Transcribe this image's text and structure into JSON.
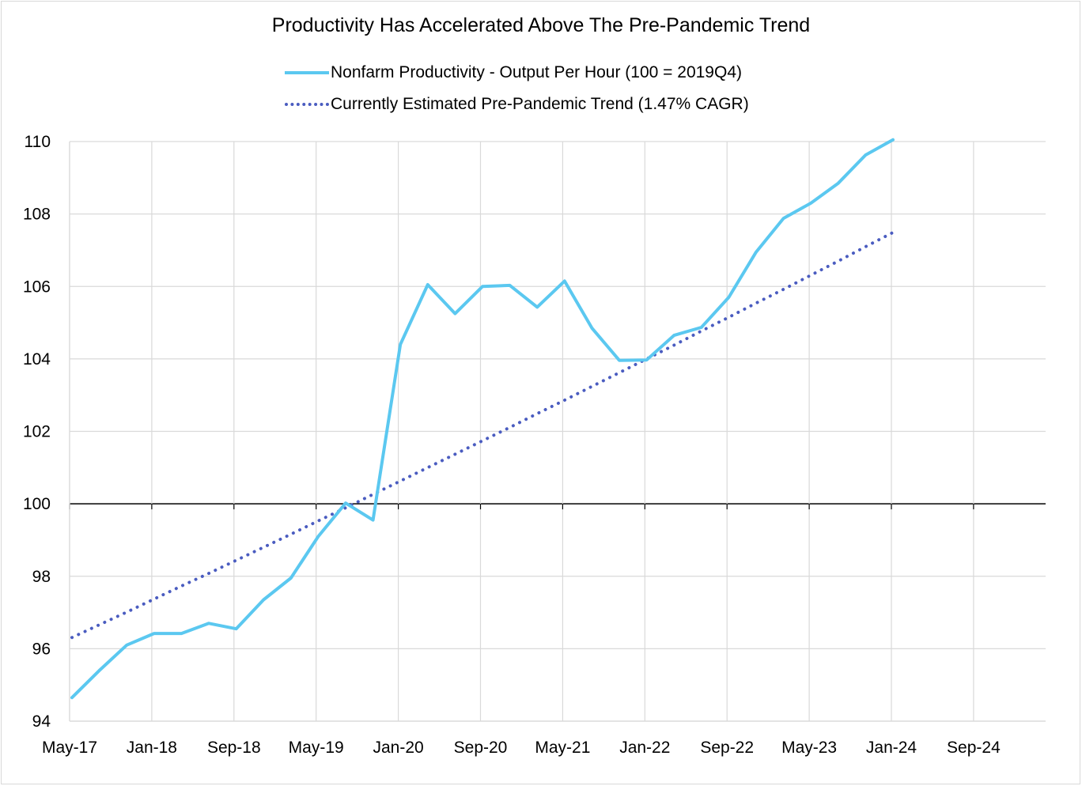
{
  "chart_data": {
    "type": "line",
    "title": "Productivity Has  Accelerated Above The Pre-Pandemic Trend",
    "xlabel": "",
    "ylabel": "",
    "ylim": [
      94,
      110
    ],
    "yticks": [
      94,
      96,
      98,
      100,
      102,
      104,
      106,
      108,
      110
    ],
    "x_tick_labels": [
      "May-17",
      "Jan-18",
      "Sep-18",
      "May-19",
      "Jan-20",
      "Sep-20",
      "May-21",
      "Jan-22",
      "Sep-22",
      "May-23",
      "Jan-24",
      "Sep-24"
    ],
    "grid": true,
    "legend_position": "top-center",
    "x": [
      "2017Q2",
      "2017Q3",
      "2017Q4",
      "2018Q1",
      "2018Q2",
      "2018Q3",
      "2018Q4",
      "2019Q1",
      "2019Q2",
      "2019Q3",
      "2019Q4",
      "2020Q1",
      "2020Q2",
      "2020Q3",
      "2020Q4",
      "2021Q1",
      "2021Q2",
      "2021Q3",
      "2021Q4",
      "2022Q1",
      "2022Q2",
      "2022Q3",
      "2022Q4",
      "2023Q1",
      "2023Q2",
      "2023Q3",
      "2023Q4",
      "2024Q1",
      "2024Q2",
      "2024Q3",
      "2024Q4"
    ],
    "series": [
      {
        "name": "Nonfarm Productivity - Output Per Hour (100 = 2019Q4)",
        "color": "#5bc8f0",
        "style": "solid",
        "values": [
          94.65,
          95.4,
          96.1,
          96.42,
          96.42,
          96.7,
          96.55,
          97.35,
          97.95,
          99.1,
          100.02,
          99.55,
          104.4,
          106.05,
          105.25,
          106.0,
          106.03,
          105.43,
          106.15,
          104.85,
          103.96,
          103.97,
          104.65,
          104.87,
          105.7,
          106.95,
          107.88,
          108.3,
          108.85,
          109.63,
          110.05
        ]
      },
      {
        "name": "Currently Estimated Pre-Pandemic Trend (1.47% CAGR)",
        "color": "#4a5cc0",
        "style": "dotted",
        "values": [
          96.31,
          96.66,
          97.01,
          97.37,
          97.73,
          98.08,
          98.44,
          98.8,
          99.16,
          99.53,
          99.89,
          100.26,
          100.63,
          101.0,
          101.37,
          101.74,
          102.11,
          102.49,
          102.86,
          103.24,
          103.62,
          104.0,
          104.38,
          104.77,
          105.15,
          105.54,
          105.92,
          106.31,
          106.7,
          107.1,
          107.49
        ]
      }
    ]
  }
}
